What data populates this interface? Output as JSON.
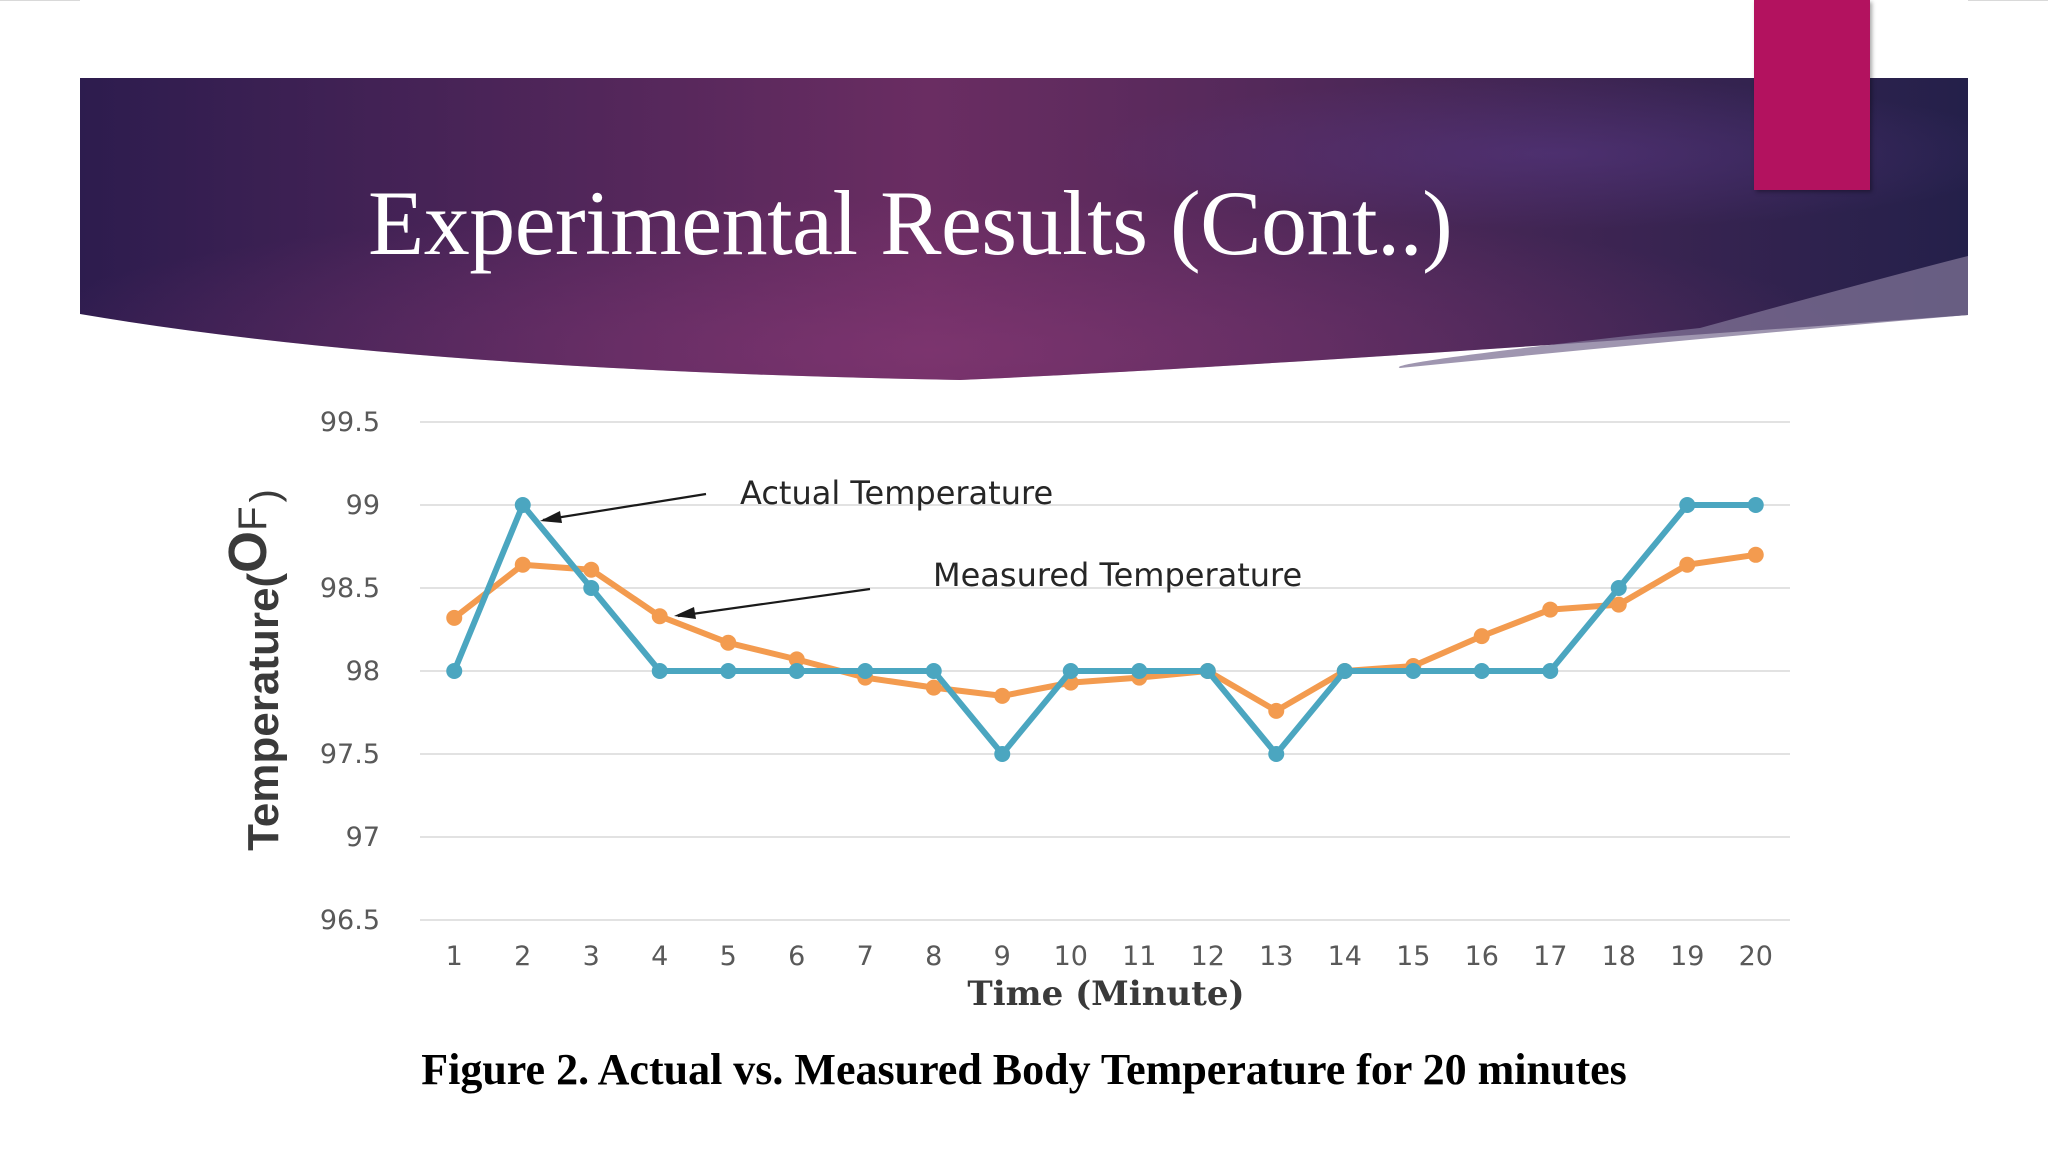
{
  "slide": {
    "title": "Experimental Results (Cont..)",
    "caption": "Figure 2. Actual vs. Measured Body Temperature for 20 minutes",
    "colors": {
      "header_left": "#2d1c4e",
      "header_mid": "#6a2d62",
      "header_right": "#24204a",
      "accent_tab": "#b3125f"
    }
  },
  "chart_data": {
    "type": "line",
    "categories": [
      "1",
      "2",
      "3",
      "4",
      "5",
      "6",
      "7",
      "8",
      "9",
      "10",
      "11",
      "12",
      "13",
      "14",
      "15",
      "16",
      "17",
      "18",
      "19",
      "20"
    ],
    "series": [
      {
        "name": "Actual Temperature",
        "color": "#4ba6c0",
        "values": [
          98,
          99,
          98.5,
          98,
          98,
          98,
          98,
          98,
          97.5,
          98,
          98,
          98,
          97.5,
          98,
          98,
          98,
          98,
          98.5,
          99,
          99
        ]
      },
      {
        "name": "Measured Temperature",
        "color": "#f39b4f",
        "values": [
          98.32,
          98.64,
          98.61,
          98.33,
          98.17,
          98.07,
          97.96,
          97.9,
          97.85,
          97.93,
          97.96,
          98.0,
          97.76,
          98.0,
          98.03,
          98.21,
          98.37,
          98.4,
          98.64,
          98.7
        ]
      }
    ],
    "xlabel": "Time (Minute)",
    "ylabel": "Temperature(",
    "ylabel_unit_symbol": "O",
    "ylabel_unit_letter": "F",
    "ylabel_close": ")",
    "ylim": [
      96.5,
      99.5
    ],
    "yticks": [
      "96.5",
      "97",
      "97.5",
      "98",
      "98.5",
      "99",
      "99.5"
    ],
    "grid": true,
    "legend": "annotations with arrows"
  }
}
